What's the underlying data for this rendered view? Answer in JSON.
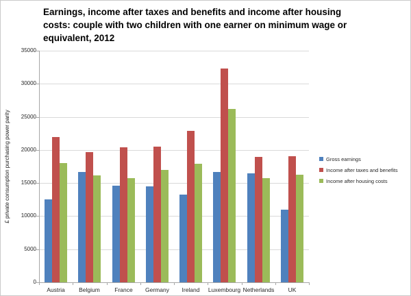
{
  "chart_data": {
    "type": "bar",
    "title": "Earnings, income after taxes and benefits and income after housing costs: couple with two children with one earner on minimum wage or equivalent, 2012",
    "title_lines": [
      "Earnings, income after taxes and benefits and income after housing",
      "costs: couple with two children with one earner on minimum wage or",
      "equivalent, 2012"
    ],
    "xlabel": "",
    "ylabel": "£ private consumption purchasing power parity",
    "ylim": [
      0,
      35000
    ],
    "yticks": [
      0,
      5000,
      10000,
      15000,
      20000,
      25000,
      30000,
      35000
    ],
    "grid": true,
    "legend_position": "right",
    "categories": [
      "Austria",
      "Belgium",
      "France",
      "Germany",
      "Ireland",
      "Luxembourg",
      "Netherlands",
      "UK"
    ],
    "series": [
      {
        "name": "Gross earnings",
        "color": "#4F81BD",
        "values": [
          12500,
          16700,
          14600,
          14500,
          13300,
          16700,
          16500,
          11000
        ]
      },
      {
        "name": "Income after taxes and benefits",
        "color": "#C0504D",
        "values": [
          22000,
          19700,
          20400,
          20500,
          22900,
          32300,
          18900,
          19100
        ]
      },
      {
        "name": "Income after housing costs",
        "color": "#9BBB59",
        "values": [
          18000,
          16200,
          15700,
          17000,
          17900,
          26200,
          15700,
          16300
        ]
      }
    ],
    "colors": {
      "gridline": "#d9d9d9",
      "axis": "#a6a6a6",
      "text": "#262626"
    }
  }
}
